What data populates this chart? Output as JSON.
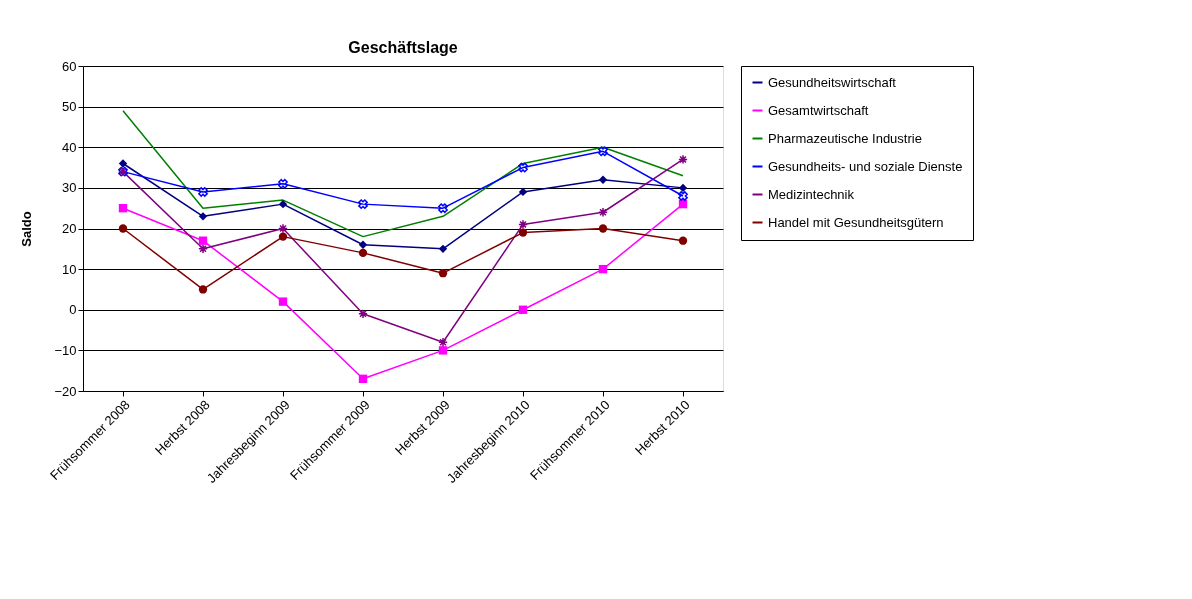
{
  "chart_data": {
    "type": "line",
    "title": "Geschäftslage",
    "ylabel": "Saldo",
    "categories": [
      "Frühsommer 2008",
      "Herbst 2008",
      "Jahresbeginn 2009",
      "Frühsommer 2009",
      "Herbst 2009",
      "Jahresbeginn 2010",
      "Frühsommer 2010",
      "Herbst 2010"
    ],
    "ylim": [
      -20,
      60
    ],
    "yticks": [
      -20,
      -10,
      0,
      10,
      20,
      30,
      40,
      50,
      60
    ],
    "grid": "y",
    "legend": "right",
    "series": [
      {
        "name": "Gesundheitswirtschaft",
        "color": "#000080",
        "marker": "diamond",
        "values": [
          36,
          23,
          26,
          16,
          15,
          29,
          32,
          30
        ]
      },
      {
        "name": "Gesamtwirtschaft",
        "color": "#ff00ff",
        "marker": "square",
        "values": [
          25,
          17,
          2,
          -17,
          -10,
          0,
          10,
          26
        ]
      },
      {
        "name": "Pharmazeutische Industrie",
        "color": "#008000",
        "marker": "none",
        "values": [
          49,
          25,
          27,
          18,
          23,
          36,
          40,
          33
        ]
      },
      {
        "name": "Gesundheits- und soziale Dienste",
        "color": "#0000ff",
        "marker": "cross",
        "values": [
          34,
          29,
          31,
          26,
          25,
          35,
          39,
          28
        ]
      },
      {
        "name": "Medizintechnik",
        "color": "#800080",
        "marker": "cross",
        "values": [
          34,
          15,
          20,
          -1,
          -8,
          21,
          24,
          37
        ]
      },
      {
        "name": "Handel mit Gesundheitsgütern",
        "color": "#800000",
        "marker": "circle",
        "values": [
          20,
          5,
          18,
          14,
          9,
          19,
          20,
          17
        ]
      }
    ]
  }
}
